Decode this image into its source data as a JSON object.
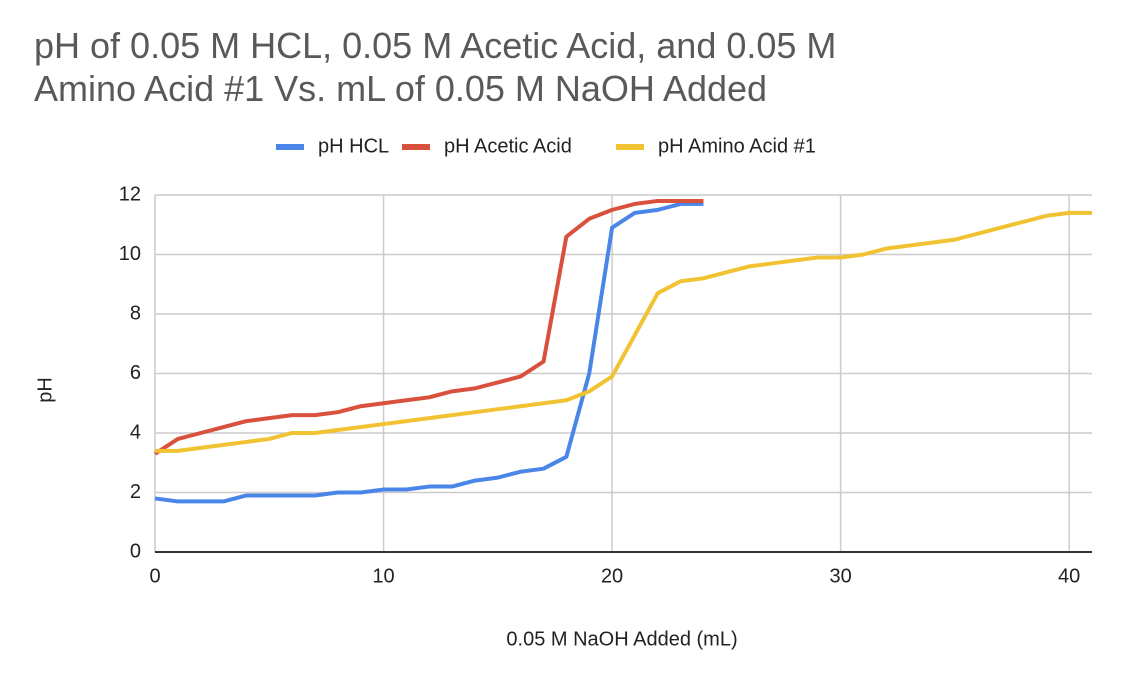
{
  "chart_data": {
    "type": "line",
    "title": [
      "pH of 0.05 M HCL, 0.05 M Acetic Acid, and 0.05 M",
      "Amino Acid #1 Vs. mL of 0.05 M NaOH Added"
    ],
    "x_label": "0.05 M NaOH Added (mL)",
    "y_label": "pH",
    "xlim": [
      0,
      41
    ],
    "xticks": [
      0,
      10,
      20,
      30,
      40
    ],
    "ylim": [
      0,
      12
    ],
    "yticks": [
      0,
      2,
      4,
      6,
      8,
      10,
      12
    ],
    "grid": true,
    "legend": "top",
    "series": [
      {
        "name": "pH HCL",
        "color": "#4a86e8",
        "x": [
          0,
          1,
          2,
          3,
          4,
          5,
          6,
          7,
          8,
          9,
          10,
          11,
          12,
          13,
          14,
          15,
          16,
          17,
          18,
          19,
          20,
          21,
          22,
          23,
          24
        ],
        "values": [
          1.8,
          1.7,
          1.7,
          1.7,
          1.9,
          1.9,
          1.9,
          1.9,
          2.0,
          2.0,
          2.1,
          2.1,
          2.2,
          2.2,
          2.4,
          2.5,
          2.7,
          2.8,
          3.2,
          6.0,
          10.9,
          11.4,
          11.5,
          11.7,
          11.7
        ]
      },
      {
        "name": "pH Acetic Acid",
        "color": "#d9513c",
        "x": [
          0,
          1,
          2,
          3,
          4,
          5,
          6,
          7,
          8,
          9,
          10,
          11,
          12,
          13,
          14,
          15,
          16,
          17,
          18,
          19,
          20,
          21,
          22,
          23,
          24
        ],
        "values": [
          3.3,
          3.8,
          4.0,
          4.2,
          4.4,
          4.5,
          4.6,
          4.6,
          4.7,
          4.9,
          5.0,
          5.1,
          5.2,
          5.4,
          5.5,
          5.7,
          5.9,
          6.4,
          10.6,
          11.2,
          11.5,
          11.7,
          11.8,
          11.8,
          11.8
        ]
      },
      {
        "name": "pH Amino Acid #1",
        "color": "#f1c232",
        "x": [
          0,
          1,
          2,
          3,
          4,
          5,
          6,
          7,
          8,
          9,
          10,
          11,
          12,
          13,
          14,
          15,
          16,
          17,
          18,
          19,
          20,
          21,
          22,
          23,
          24,
          25,
          26,
          27,
          28,
          29,
          30,
          31,
          32,
          33,
          34,
          35,
          36,
          37,
          38,
          39,
          40,
          41
        ],
        "values": [
          3.4,
          3.4,
          3.5,
          3.6,
          3.7,
          3.8,
          4.0,
          4.0,
          4.1,
          4.2,
          4.3,
          4.4,
          4.5,
          4.6,
          4.7,
          4.8,
          4.9,
          5.0,
          5.1,
          5.4,
          5.9,
          7.3,
          8.7,
          9.1,
          9.2,
          9.4,
          9.6,
          9.7,
          9.8,
          9.9,
          9.9,
          10.0,
          10.2,
          10.3,
          10.4,
          10.5,
          10.7,
          10.9,
          11.1,
          11.3,
          11.4,
          11.4
        ]
      }
    ]
  }
}
